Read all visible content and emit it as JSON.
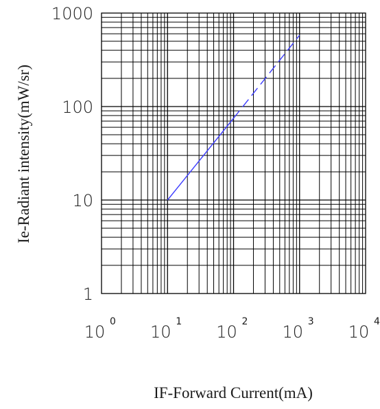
{
  "chart_data": {
    "type": "line",
    "title": "",
    "xlabel": "IF-Forward Current(mA)",
    "ylabel": "Ie-Radiant intensity(mW/sr)",
    "x_scale": "log",
    "y_scale": "log",
    "xlim": [
      1,
      10000
    ],
    "ylim": [
      1,
      1000
    ],
    "x_ticks": [
      {
        "base": "10",
        "exp": "0"
      },
      {
        "base": "10",
        "exp": "1"
      },
      {
        "base": "10",
        "exp": "2"
      },
      {
        "base": "10",
        "exp": "3"
      },
      {
        "base": "10",
        "exp": "4"
      }
    ],
    "y_ticks": [
      "1",
      "10",
      "100",
      "1000"
    ],
    "grid": true,
    "series": [
      {
        "color": "#3b3bff",
        "segments": [
          {
            "style": "solid",
            "x": [
              10,
              100
            ],
            "y": [
              10,
              75
            ]
          },
          {
            "style": "dashed",
            "x": [
              100,
              1000
            ],
            "y": [
              75,
              580
            ]
          }
        ]
      }
    ]
  }
}
